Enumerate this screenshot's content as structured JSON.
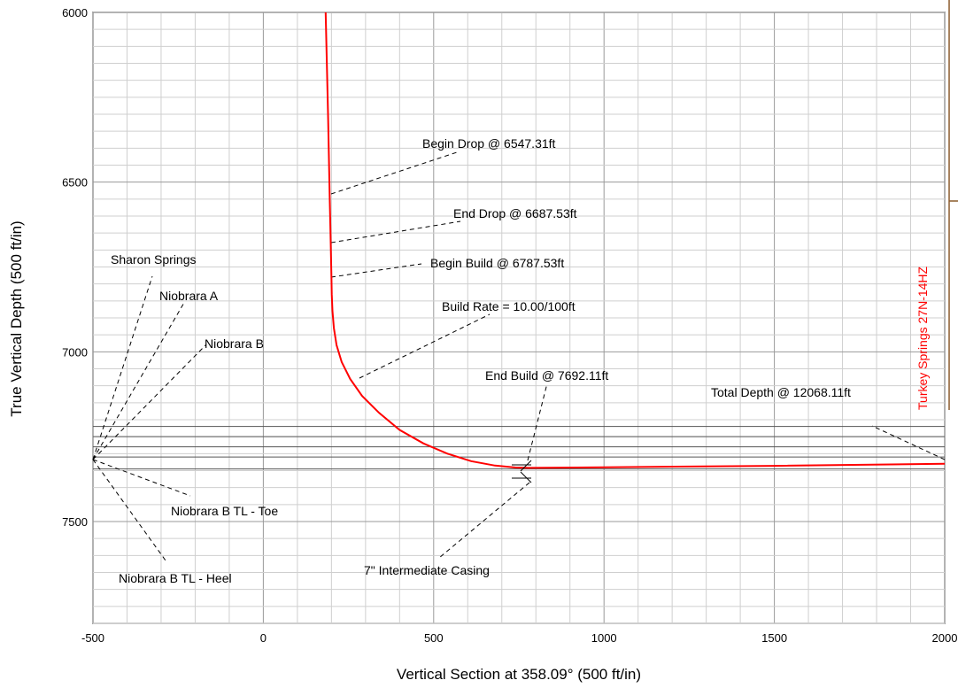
{
  "chart_data": {
    "type": "line",
    "xlabel": "Vertical Section at 358.09° (500 ft/in)",
    "ylabel": "True Vertical Depth (500 ft/in)",
    "xlim": [
      -500,
      2000
    ],
    "ylim": [
      6000,
      7800
    ],
    "y_inverted": true,
    "x_ticks": [
      -500,
      0,
      500,
      1000,
      1500,
      2000
    ],
    "y_ticks": [
      6000,
      6500,
      7000,
      7500
    ],
    "grid": true,
    "series": [
      {
        "name": "Turkey Springs 27N-14HZ",
        "color": "#ff0000",
        "x": [
          183,
          190,
          195,
          198,
          200,
          201,
          203,
          207,
          215,
          230,
          255,
          290,
          340,
          400,
          470,
          540,
          610,
          680,
          740,
          780,
          1000,
          1500,
          2000
        ],
        "y": [
          6000,
          6300,
          6547.31,
          6687.53,
          6787.53,
          6830,
          6880,
          6930,
          6980,
          7030,
          7080,
          7130,
          7180,
          7230,
          7270,
          7300,
          7322,
          7335,
          7341,
          7342,
          7340,
          7336,
          7330
        ]
      }
    ],
    "formation_lines": [
      7220,
      7250,
      7280,
      7310,
      7345
    ],
    "annotations": [
      "Begin Drop @ 6547.31ft",
      "End Drop @ 6687.53ft",
      "Begin Build @ 6787.53ft",
      "Build Rate = 10.00/100ft",
      "End Build @ 7692.11ft",
      "Total Depth @ 12068.11ft",
      "7\" Intermediate Casing",
      "Sharon Springs",
      "Niobrara A",
      "Niobrara B",
      "Niobrara B TL - Toe",
      "Niobrara B TL - Heel"
    ]
  }
}
